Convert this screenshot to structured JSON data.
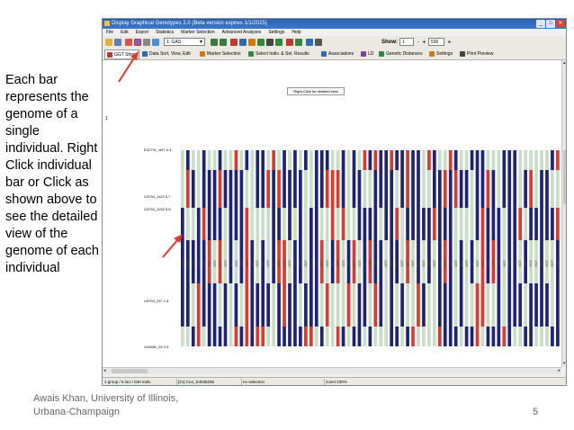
{
  "slide": {
    "description_text": "Each bar represents the genome of a single individual. Right Click individual bar or Click as shown above to see the detailed view of the genome of each individual",
    "author": "Awais Khan, University of Illinois, Urbana-Champaign",
    "page_number": "5"
  },
  "app": {
    "title": "Display Graphical Genotypes 2.0   (Beta version expires 1/1/2015)",
    "menu": [
      "File",
      "Edit",
      "Export",
      "Statistics",
      "Marker Selection",
      "Advanced Analyses",
      "Settings",
      "Help"
    ],
    "toolbar": {
      "group_select": "1: GAS",
      "show_label": "Show:",
      "show_from": "1",
      "show_to": "530"
    },
    "tabs": [
      {
        "label": "GGT Show",
        "icon": "chart-icon",
        "color": "#c0392b"
      },
      {
        "label": "Data Sort, View, Edit",
        "icon": "sort-icon",
        "color": "#2d6cb0"
      },
      {
        "label": "Marker Selection",
        "icon": "star-icon",
        "color": "#d17b0f"
      },
      {
        "label": "Select Indiv. & Sel. Results",
        "icon": "check-icon",
        "color": "#2e8b3e"
      },
      {
        "label": "Associations",
        "icon": "grid-icon",
        "color": "#2d6cb0"
      },
      {
        "label": "LD",
        "icon": "ld-icon",
        "color": "#7b3fa0"
      },
      {
        "label": "Genetic Distances",
        "icon": "tree-icon",
        "color": "#2e8b3e"
      },
      {
        "label": "Settings",
        "icon": "gear-icon",
        "color": "#d17b0f"
      },
      {
        "label": "Print Preview",
        "icon": "print-icon",
        "color": "#444444"
      }
    ],
    "right_click_button": "Right-Click for detailed view",
    "axis_one_label": "1",
    "markers": [
      {
        "label": "E32731_i497 0.3"
      },
      {
        "label": "U3794_1129 5.7"
      },
      {
        "label": "U3794_1032 5.8"
      },
      {
        "label": "U3794_237 1.6"
      },
      {
        "label": "U10651_94 2.0"
      }
    ],
    "individual_label": "GGT",
    "status": {
      "group": "1 group / 5 loci / 530 indiv.",
      "cursor": "[21] Cu4_S4035295",
      "selection": "no selection",
      "zoom": "zoom:100%"
    }
  },
  "colors": {
    "parent_a": "#1c2378",
    "parent_b": "#e0392b",
    "heterozygous": "#c9dec6",
    "arrow": "#e0392b"
  }
}
